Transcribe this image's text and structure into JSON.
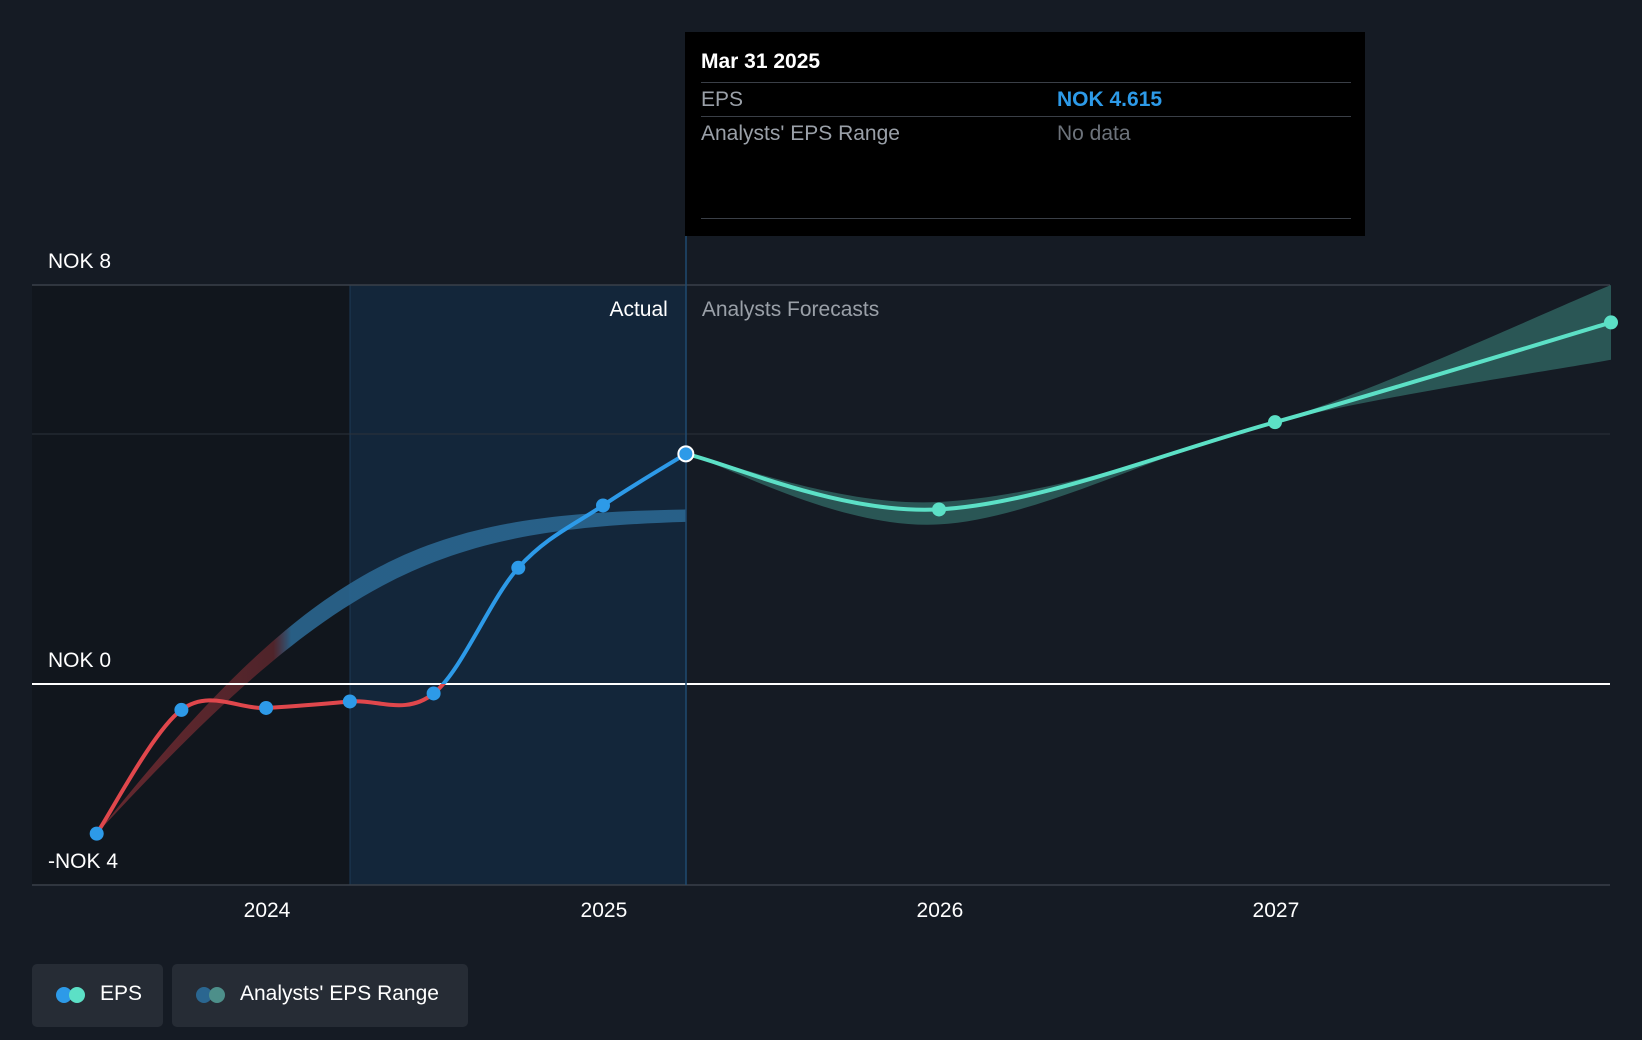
{
  "chart_data": {
    "type": "line",
    "title": "",
    "xlabel": "",
    "ylabel": "",
    "y_ticks": [
      {
        "value": 8,
        "label": "NOK 8"
      },
      {
        "value": 0,
        "label": "NOK 0"
      },
      {
        "value": -4,
        "label": "-NOK 4"
      }
    ],
    "x_ticks": [
      {
        "value": "2024-01-01",
        "label": "2024"
      },
      {
        "value": "2025-01-01",
        "label": "2025"
      },
      {
        "value": "2026-01-01",
        "label": "2026"
      },
      {
        "value": "2027-01-01",
        "label": "2027"
      }
    ],
    "xlim": [
      "2023-06-13",
      "2027-12-31"
    ],
    "ylim": [
      -4.5,
      8
    ],
    "section_labels": {
      "actual": "Actual",
      "forecast": "Analysts Forecasts"
    },
    "divider_date": "2025-03-31",
    "series": [
      {
        "name": "EPS",
        "kind": "actual",
        "color_negative": "#e0474c",
        "color_positive": "#2d9ae8",
        "points": [
          {
            "x": "2023-06-30",
            "y": -3.0
          },
          {
            "x": "2023-09-30",
            "y": -0.52
          },
          {
            "x": "2023-12-31",
            "y": -0.48
          },
          {
            "x": "2024-03-31",
            "y": -0.35
          },
          {
            "x": "2024-06-30",
            "y": -0.19
          },
          {
            "x": "2024-09-30",
            "y": 2.33
          },
          {
            "x": "2024-12-31",
            "y": 3.58
          },
          {
            "x": "2025-03-31",
            "y": 4.615
          }
        ]
      },
      {
        "name": "EPS",
        "kind": "forecast",
        "color": "#5ce0c6",
        "points": [
          {
            "x": "2025-03-31",
            "y": 4.615
          },
          {
            "x": "2025-12-31",
            "y": 3.5
          },
          {
            "x": "2026-12-31",
            "y": 5.25
          },
          {
            "x": "2027-12-31",
            "y": 7.25
          }
        ]
      },
      {
        "name": "Analysts' EPS Range",
        "kind": "range",
        "color": "#5ce0c6",
        "points": [
          {
            "x": "2025-03-31",
            "low": 4.615,
            "high": 4.615
          },
          {
            "x": "2025-12-31",
            "low": 3.2,
            "high": 3.65
          },
          {
            "x": "2026-12-31",
            "low": 5.25,
            "high": 5.25
          },
          {
            "x": "2027-12-31",
            "low": 6.5,
            "high": 8.0
          }
        ]
      }
    ],
    "legend": {
      "position": "bottom-left",
      "items": [
        {
          "label": "EPS",
          "colors": [
            "#2d9ae8",
            "#5ce0c6"
          ]
        },
        {
          "label": "Analysts' EPS Range",
          "colors": [
            "#2a6690",
            "#4d8f8a"
          ]
        }
      ]
    },
    "tooltip": {
      "date": "Mar 31 2025",
      "rows": [
        {
          "label": "EPS",
          "value": "NOK 4.615"
        },
        {
          "label": "Analysts' EPS Range",
          "value": "No data"
        }
      ]
    }
  }
}
